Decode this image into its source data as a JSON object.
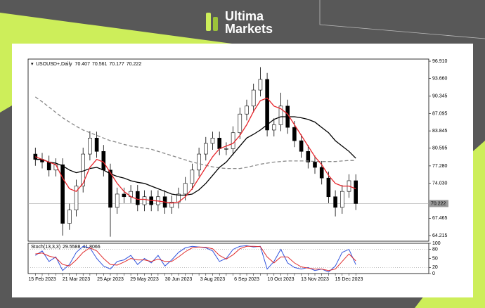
{
  "brand": {
    "line1": "Ultima",
    "line2": "Markets"
  },
  "chart_data": [
    {
      "type": "candlestick",
      "symbol": "USOUSD+,Daily",
      "legend_values": [
        70.407,
        70.561,
        70.177,
        70.222
      ],
      "categories": [
        null,
        "15 Feb 2023",
        null,
        null,
        null,
        null,
        "21 Mar 2023",
        null,
        null,
        null,
        null,
        "25 Apr 2023",
        null,
        null,
        null,
        null,
        "29 May 2023",
        null,
        null,
        null,
        null,
        "30 Jun 2023",
        null,
        null,
        null,
        null,
        "3 Aug 2023",
        null,
        null,
        null,
        null,
        "6 Sep 2023",
        null,
        null,
        null,
        null,
        "10 Oct 2023",
        null,
        null,
        null,
        null,
        "13 Nov 2023",
        null,
        null,
        null,
        null,
        "15 Dec 2023",
        null
      ],
      "open": [
        79.5,
        78.5,
        78,
        76.5,
        77.5,
        66.5,
        69,
        73.5,
        79.5,
        82.5,
        80,
        76.5,
        69.5,
        72,
        71.5,
        72.5,
        70,
        71.5,
        70,
        71.5,
        69.5,
        70.5,
        72,
        74,
        76.5,
        79.5,
        81.5,
        82.5,
        80.5,
        80.5,
        83.5,
        87,
        88.5,
        91.5,
        93.5,
        84,
        85,
        88.5,
        84.5,
        82,
        80,
        78,
        77,
        75,
        71.5,
        69.5,
        72.5,
        74.5
      ],
      "high": [
        80.7,
        79.7,
        79.2,
        78.7,
        78.7,
        70.2,
        74.7,
        80.7,
        83.8,
        83.7,
        81.2,
        77.7,
        73.2,
        73.2,
        73.7,
        73.7,
        72.7,
        72.7,
        72.7,
        72.7,
        71.7,
        73.2,
        75.2,
        77.7,
        80.7,
        82.7,
        83.7,
        83.7,
        81.7,
        84.7,
        88.2,
        89.7,
        92.7,
        95.8,
        94.7,
        86.2,
        91.0,
        89.7,
        85.7,
        83.2,
        81.2,
        79.2,
        78.2,
        76.2,
        72.7,
        73.7,
        75.7,
        75.7
      ],
      "low": [
        77.3,
        76.8,
        75.3,
        75.3,
        64.2,
        65.3,
        67.8,
        72.3,
        78.3,
        78.8,
        75.3,
        64.0,
        68.3,
        70.3,
        70.3,
        68.8,
        68.8,
        68.8,
        68.8,
        68.3,
        68.3,
        69.3,
        70.8,
        72.8,
        75.3,
        78.3,
        80.3,
        79.3,
        79.3,
        79.3,
        82.3,
        85.8,
        87.3,
        90.3,
        82.8,
        82.8,
        83.8,
        83.3,
        80.8,
        78.8,
        76.8,
        75.8,
        73.8,
        70.3,
        67.8,
        68.3,
        71.3,
        69.0
      ],
      "close": [
        78.5,
        78,
        76.5,
        77.5,
        66.5,
        69,
        73.5,
        79.5,
        82.5,
        80,
        76.5,
        69.5,
        72,
        71.5,
        72.5,
        70,
        71.5,
        70,
        71.5,
        69.5,
        70.5,
        72,
        74,
        76.5,
        79.5,
        81.5,
        82.5,
        80.5,
        80.5,
        83.5,
        87,
        88.5,
        91.5,
        93.5,
        84,
        85,
        88.5,
        84.5,
        82,
        80,
        78,
        77,
        75,
        71.5,
        69.5,
        72.5,
        74.5,
        70.222
      ],
      "lines": [
        {
          "color": "#888888",
          "dashed": true,
          "values": [
            90.2,
            89.3,
            88.3,
            87.3,
            86.3,
            85.5,
            84.7,
            84,
            83.5,
            83,
            82.5,
            82,
            81.7,
            81.3,
            81,
            80.8,
            80.6,
            80.4,
            80,
            79.6,
            79.2,
            78.8,
            78.4,
            78,
            77.7,
            77.4,
            77.1,
            76.9,
            76.8,
            76.8,
            76.8,
            77,
            77.3,
            77.6,
            77.8,
            78,
            78.1,
            78.2,
            78.2,
            78.2,
            78.2,
            78.1,
            78.1,
            78.1,
            78.1,
            78.2,
            78.3,
            78.3
          ]
        },
        {
          "color": "#000000",
          "dashed": false,
          "values": [
            78.5,
            78.5,
            78,
            77.8,
            77.3,
            76.5,
            76,
            76.3,
            76.8,
            77,
            76.5,
            75.8,
            75.3,
            75,
            74.5,
            74.2,
            74,
            73.5,
            73,
            72.5,
            72,
            71.8,
            71.8,
            72,
            72.8,
            74,
            75.5,
            77,
            78,
            79.5,
            81,
            82.5,
            83.2,
            84,
            85,
            86,
            86.5,
            86.5,
            86.5,
            86.3,
            86,
            85.5,
            84.5,
            83.5,
            82,
            81,
            80,
            78.7
          ]
        },
        {
          "color": "#e8262c",
          "dashed": false,
          "values": [
            79,
            78.5,
            78,
            77.5,
            75,
            73,
            72.5,
            74,
            77,
            78.5,
            78,
            76,
            74,
            72.5,
            71.5,
            71,
            71,
            70.8,
            70.7,
            70.5,
            70.3,
            70.5,
            71.5,
            73,
            75,
            77,
            79,
            80.5,
            81,
            81.5,
            83,
            85,
            87.5,
            89.5,
            90,
            88.5,
            88,
            87,
            85,
            83,
            81,
            79,
            77.5,
            75.5,
            74,
            73.5,
            73.5,
            73
          ]
        }
      ],
      "last_price": {
        "value": 70.222,
        "label": "70.222"
      },
      "ylim": [
        63.16,
        97.31
      ],
      "yticks": [
        {
          "value": 96.91,
          "label": "96.910"
        },
        {
          "value": 93.66,
          "label": "93.660"
        },
        90.345,
        87.095,
        83.845,
        80.595,
        {
          "value": 77.28,
          "label": "77.280"
        },
        {
          "value": 74.03,
          "label": "74.030"
        },
        67.465,
        64.215
      ],
      "grid": false
    },
    {
      "type": "line",
      "title": "Stoch(13,3,3)",
      "legend_values": [
        29.5588,
        41.8066
      ],
      "series": [
        {
          "color": "#3355dd",
          "values": [
            60,
            75,
            40,
            55,
            10,
            30,
            70,
            90,
            85,
            50,
            25,
            15,
            40,
            45,
            60,
            30,
            50,
            35,
            60,
            25,
            45,
            70,
            85,
            90,
            88,
            85,
            75,
            40,
            50,
            80,
            90,
            92,
            88,
            90,
            15,
            40,
            80,
            35,
            20,
            15,
            20,
            10,
            15,
            5,
            25,
            70,
            80,
            29.5588
          ]
        },
        {
          "color": "#e03030",
          "values": [
            65,
            68,
            58,
            52,
            30,
            25,
            45,
            70,
            85,
            75,
            50,
            30,
            28,
            38,
            50,
            45,
            45,
            40,
            48,
            40,
            40,
            55,
            72,
            85,
            88,
            87,
            82,
            60,
            48,
            62,
            82,
            90,
            90,
            89,
            55,
            35,
            55,
            55,
            35,
            22,
            18,
            15,
            15,
            10,
            15,
            40,
            65,
            41.8066
          ]
        }
      ],
      "levels": [
        80,
        20
      ],
      "ylim": [
        0,
        100
      ],
      "yticks": [
        100,
        80,
        50,
        20,
        0
      ],
      "grid": false
    }
  ]
}
